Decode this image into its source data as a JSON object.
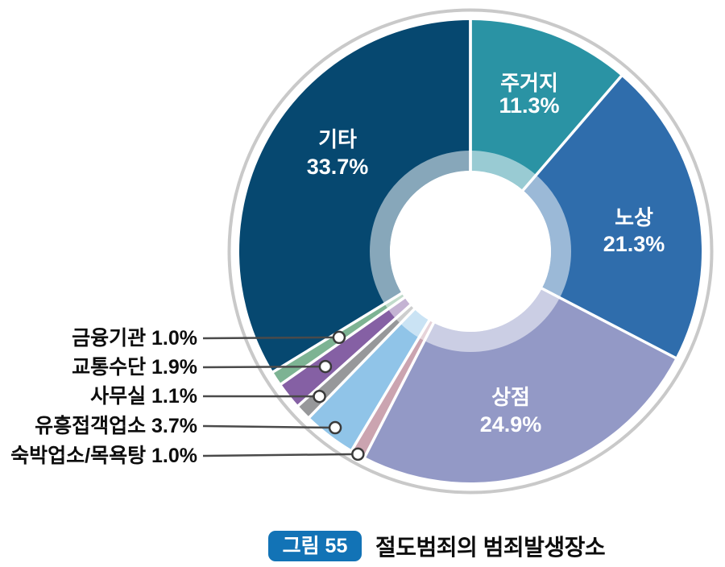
{
  "figure": {
    "badge": "그림 55",
    "badge_color": "#1273b6",
    "title": "절도범죄의 범죄발생장소"
  },
  "chart_data": {
    "type": "pie",
    "subtype": "donut",
    "title": "절도범죄의 범죄발생장소",
    "unit": "%",
    "start_angle_deg": 0,
    "direction": "clockwise",
    "legend": "none",
    "segments": [
      {
        "slug": "residence",
        "label": "주거지",
        "value": 11.3,
        "color": "#2a93a4",
        "label_style": "inside"
      },
      {
        "slug": "street",
        "label": "노상",
        "value": 21.3,
        "color": "#2f6dac",
        "label_style": "inside"
      },
      {
        "slug": "store",
        "label": "상점",
        "value": 24.9,
        "color": "#9399c6",
        "label_style": "inside"
      },
      {
        "slug": "lodging-bathhouse",
        "label": "숙박업소/목욕탕",
        "value": 1.0,
        "color": "#cba4b0",
        "label_style": "callout"
      },
      {
        "slug": "entertainment-establishment",
        "label": "유흥접객업소",
        "value": 3.7,
        "color": "#90c4e8",
        "label_style": "callout"
      },
      {
        "slug": "office",
        "label": "사무실",
        "value": 1.1,
        "color": "#97989a",
        "label_style": "callout"
      },
      {
        "slug": "transportation",
        "label": "교통수단",
        "value": 1.9,
        "color": "#8560a4",
        "label_style": "callout"
      },
      {
        "slug": "financial-institution",
        "label": "금융기관",
        "value": 1.0,
        "color": "#7db393",
        "label_style": "callout"
      },
      {
        "slug": "others",
        "label": "기타",
        "value": 33.7,
        "color": "#064870",
        "label_style": "inside"
      }
    ]
  }
}
